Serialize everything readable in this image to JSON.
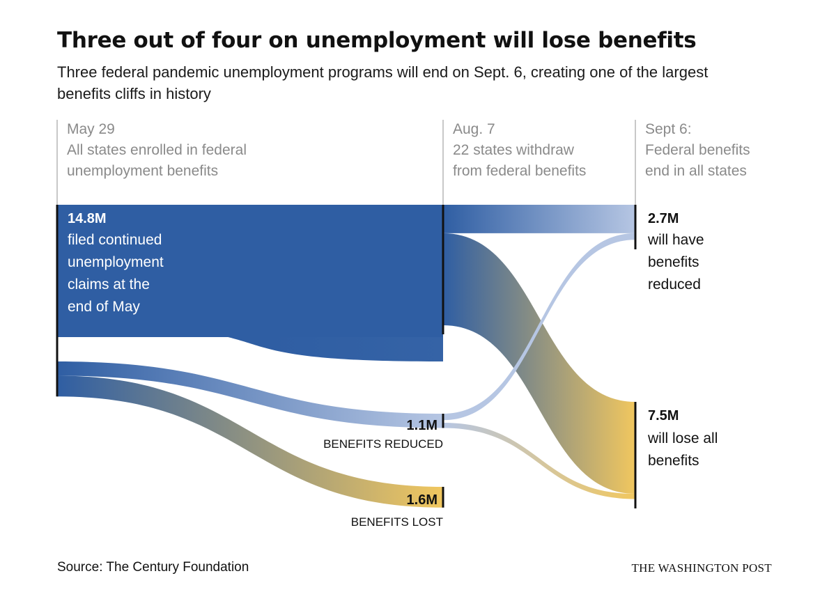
{
  "title": "Three out of four on unemployment will lose benefits",
  "subtitle": "Three federal pandemic unemployment programs will end on Sept. 6, creating one of the largest benefits cliffs in history",
  "source": "Source: The Century Foundation",
  "credit": "THE WASHINGTON POST",
  "colors": {
    "blue": "#2f5ea3",
    "light_blue": "#b6c6e3",
    "gold": "#f1c75f",
    "axis": "#c8c8c8"
  },
  "chart_data": {
    "type": "sankey",
    "unit": "million people",
    "stages": [
      {
        "id": "may29",
        "lines": [
          "May 29",
          "All states enrolled in federal",
          "unemployment benefits"
        ]
      },
      {
        "id": "aug7",
        "lines": [
          "Aug. 7",
          "22 states withdraw",
          "from federal benefits"
        ]
      },
      {
        "id": "sept6",
        "lines": [
          "Sept 6:",
          "Federal benefits",
          "end in all states"
        ]
      }
    ],
    "nodes": [
      {
        "id": "start",
        "stage": "may29",
        "value": 14.8,
        "value_label": "14.8M",
        "desc_lines": [
          "filed continued",
          "unemployment",
          "claims at the",
          "end of May"
        ]
      },
      {
        "id": "aug_continuing",
        "stage": "aug7",
        "value": 12.1
      },
      {
        "id": "aug_reduced",
        "stage": "aug7",
        "value": 1.1,
        "value_label": "1.1M",
        "sub_label": "BENEFITS REDUCED"
      },
      {
        "id": "aug_lost",
        "stage": "aug7",
        "value": 1.6,
        "value_label": "1.6M",
        "sub_label": "BENEFITS LOST"
      },
      {
        "id": "sept_reduced",
        "stage": "sept6",
        "value": 2.7,
        "value_label": "2.7M",
        "desc_lines": [
          "will have",
          "benefits",
          "reduced"
        ]
      },
      {
        "id": "sept_lost",
        "stage": "sept6",
        "value": 7.5,
        "value_label": "7.5M",
        "desc_lines": [
          "will lose all",
          "benefits"
        ]
      }
    ],
    "links": [
      {
        "source": "start",
        "target": "aug_continuing",
        "value": 12.1
      },
      {
        "source": "start",
        "target": "aug_reduced",
        "value": 1.1
      },
      {
        "source": "start",
        "target": "aug_lost",
        "value": 1.6
      },
      {
        "source": "aug_continuing",
        "target": "sept_reduced",
        "value": 2.2
      },
      {
        "source": "aug_continuing",
        "target": "sept_lost",
        "value": 7.1
      },
      {
        "source": "aug_reduced",
        "target": "sept_reduced",
        "value": 0.5
      },
      {
        "source": "aug_reduced",
        "target": "sept_lost",
        "value": 0.4
      }
    ]
  }
}
